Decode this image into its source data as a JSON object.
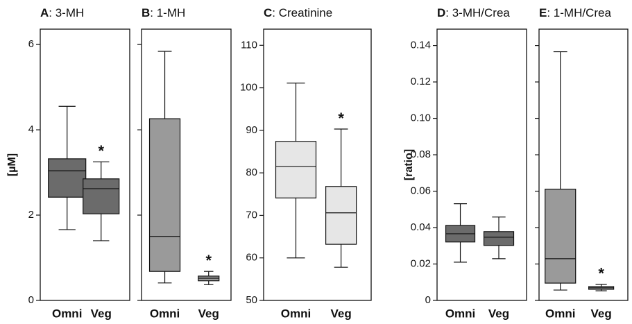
{
  "chart_data": [
    {
      "type": "box",
      "title": {
        "letter": "A",
        "text": ": 3-MH"
      },
      "ylabel": "[µM]",
      "categories": [
        "Omni",
        "Veg"
      ],
      "color": "#6b6b6b",
      "boxes": [
        {
          "min": 1.66,
          "q1": 2.42,
          "median": 3.04,
          "q3": 3.32,
          "max": 4.55
        },
        {
          "min": 1.4,
          "q1": 2.03,
          "median": 2.62,
          "q3": 2.85,
          "max": 3.25
        }
      ],
      "annotations": [
        null,
        "*"
      ],
      "ylim": [
        0,
        6.36
      ],
      "yticks": [
        0,
        2,
        4,
        6
      ],
      "ytick_labels": true
    },
    {
      "type": "box",
      "title": {
        "letter": "B",
        "text": ": 1-MH"
      },
      "categories": [
        "Omni",
        "Veg"
      ],
      "color": "#9a9a9a",
      "boxes": [
        {
          "min": 0.41,
          "q1": 0.68,
          "median": 1.5,
          "q3": 4.26,
          "max": 5.84
        },
        {
          "min": 0.37,
          "q1": 0.46,
          "median": 0.52,
          "q3": 0.57,
          "max": 0.68
        }
      ],
      "annotations": [
        null,
        "*"
      ],
      "ylim": [
        0,
        6.36
      ],
      "yticks": [
        0,
        2,
        4,
        6
      ],
      "ytick_labels": false
    },
    {
      "type": "box",
      "title": {
        "letter": "C",
        "text": ": Creatinine"
      },
      "categories": [
        "Omni",
        "Veg"
      ],
      "color": "#e6e6e6",
      "boxes": [
        {
          "min": 60.0,
          "q1": 74.1,
          "median": 81.5,
          "q3": 87.4,
          "max": 101.1
        },
        {
          "min": 57.8,
          "q1": 63.2,
          "median": 70.6,
          "q3": 76.8,
          "max": 90.3
        }
      ],
      "annotations": [
        null,
        "*"
      ],
      "ylim": [
        50,
        113.8
      ],
      "yticks": [
        50,
        60,
        70,
        80,
        90,
        100,
        110
      ],
      "ytick_labels": true
    },
    {
      "type": "box",
      "title": {
        "letter": "D",
        "text": ": 3-MH/Crea"
      },
      "ylabel": "[ratio]",
      "categories": [
        "Omni",
        "Veg"
      ],
      "color": "#6b6b6b",
      "boxes": [
        {
          "min": 0.021,
          "q1": 0.0321,
          "median": 0.0366,
          "q3": 0.0412,
          "max": 0.0531
        },
        {
          "min": 0.0229,
          "q1": 0.0302,
          "median": 0.0347,
          "q3": 0.0378,
          "max": 0.0458
        }
      ],
      "annotations": [
        null,
        null
      ],
      "ylim": [
        0,
        0.149
      ],
      "yticks": [
        0,
        0.02,
        0.04,
        0.06,
        0.08,
        {
          "value": 0.1,
          "label": "0.10"
        },
        0.12,
        0.14
      ],
      "ytick_labels": true
    },
    {
      "type": "box",
      "title": {
        "letter": "E",
        "text": ": 1-MH/Crea"
      },
      "categories": [
        "Omni",
        "Veg"
      ],
      "color": "#9a9a9a",
      "boxes": [
        {
          "min": 0.0057,
          "q1": 0.0095,
          "median": 0.0229,
          "q3": 0.0611,
          "max": 0.1366
        },
        {
          "min": 0.0053,
          "q1": 0.0061,
          "median": 0.0069,
          "q3": 0.0076,
          "max": 0.0088
        }
      ],
      "annotations": [
        null,
        "*"
      ],
      "ylim": [
        0,
        0.149
      ],
      "yticks": [
        0,
        0.02,
        0.04,
        0.06,
        0.08,
        {
          "value": 0.1,
          "label": "0.10"
        },
        0.12,
        0.14
      ],
      "ytick_labels": false
    }
  ]
}
